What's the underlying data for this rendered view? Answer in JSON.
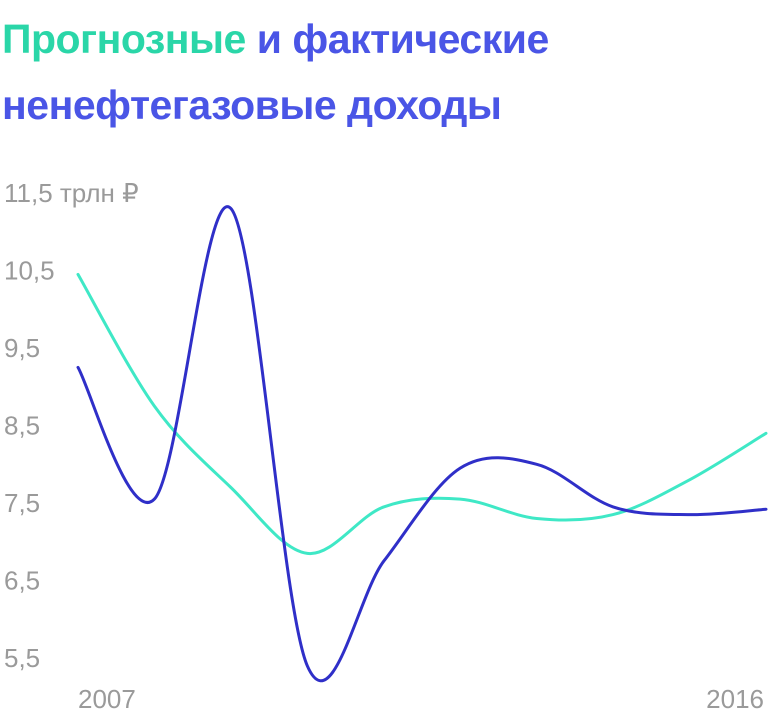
{
  "title": {
    "part1": "Прогнозные",
    "part2": "и фактические ненефтегазовые доходы"
  },
  "colors": {
    "forecast": "#3fe8c6",
    "actual": "#2f2fc8",
    "title_green": "#2ad6a8",
    "title_blue": "#4a55e6",
    "tick": "#9a9a9a"
  },
  "chart_data": {
    "type": "line",
    "x": [
      2007,
      2008,
      2009,
      2010,
      2011,
      2012,
      2013,
      2014,
      2015,
      2016
    ],
    "xlim": [
      2007,
      2016
    ],
    "ylim": [
      5.5,
      11.5
    ],
    "y_unit": "трлн ₽",
    "y_ticks": [
      {
        "value": 11.5,
        "label": "11,5"
      },
      {
        "value": 10.5,
        "label": "10,5"
      },
      {
        "value": 9.5,
        "label": "9,5"
      },
      {
        "value": 8.5,
        "label": "8,5"
      },
      {
        "value": 7.5,
        "label": "7,5"
      },
      {
        "value": 6.5,
        "label": "6,5"
      },
      {
        "value": 5.5,
        "label": "5,5"
      }
    ],
    "x_ticks": [
      {
        "value": 2007,
        "label": "2007"
      },
      {
        "value": 2016,
        "label": "2016"
      }
    ],
    "grid": false,
    "series": [
      {
        "key": "forecast",
        "values": [
          10.45,
          8.75,
          7.7,
          6.85,
          7.45,
          7.55,
          7.3,
          7.35,
          7.8,
          8.4
        ]
      },
      {
        "key": "actual",
        "values": [
          9.25,
          7.55,
          11.3,
          5.4,
          6.75,
          7.95,
          8.0,
          7.45,
          7.35,
          7.42
        ]
      }
    ]
  }
}
